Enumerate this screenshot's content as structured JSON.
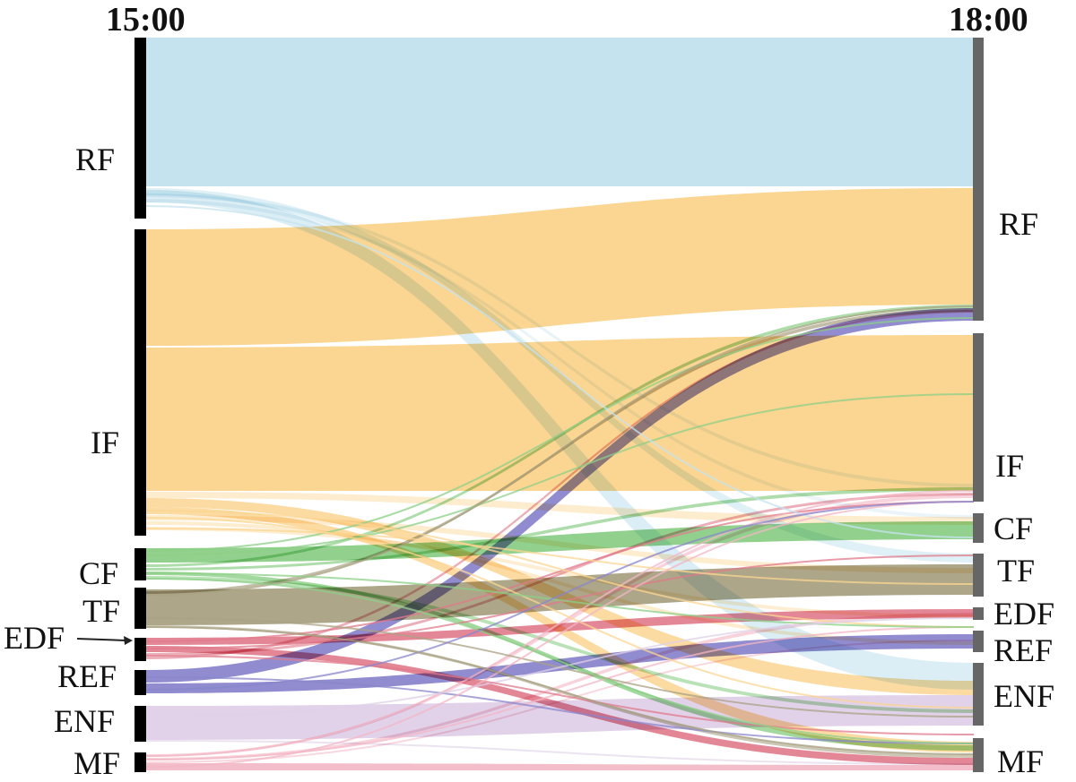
{
  "time_left": "15:00",
  "time_right": "18:00",
  "colors": {
    "RF": "#c5e3ef",
    "IF": "#fbd592",
    "CF": "#8ccf87",
    "TF": "#a9a183",
    "EDF": "#e07a8b",
    "REF": "#8a86cc",
    "ENF": "#dfd0e8",
    "MF": "#f3b6c4",
    "left_bar": "#000000",
    "right_bar": "#666666"
  },
  "left_nodes": [
    {
      "id": "RF",
      "label": "RF"
    },
    {
      "id": "IF",
      "label": "IF"
    },
    {
      "id": "CF",
      "label": "CF"
    },
    {
      "id": "TF",
      "label": "TF"
    },
    {
      "id": "EDF",
      "label": "EDF"
    },
    {
      "id": "REF",
      "label": "REF"
    },
    {
      "id": "ENF",
      "label": "ENF"
    },
    {
      "id": "MF",
      "label": "MF"
    }
  ],
  "right_nodes": [
    {
      "id": "RF",
      "label": "RF"
    },
    {
      "id": "IF",
      "label": "IF"
    },
    {
      "id": "CF",
      "label": "CF"
    },
    {
      "id": "TF",
      "label": "TF"
    },
    {
      "id": "EDF",
      "label": "EDF"
    },
    {
      "id": "REF",
      "label": "REF"
    },
    {
      "id": "ENF",
      "label": "ENF"
    },
    {
      "id": "MF",
      "label": "MF"
    }
  ]
}
